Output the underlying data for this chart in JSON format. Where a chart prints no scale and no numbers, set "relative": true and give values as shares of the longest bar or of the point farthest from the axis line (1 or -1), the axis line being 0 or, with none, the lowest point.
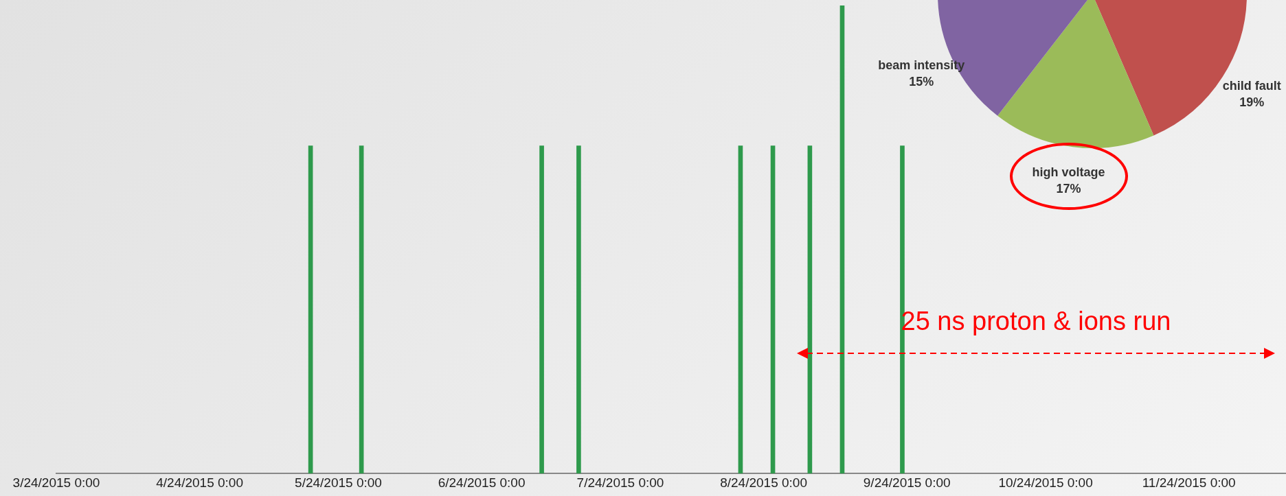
{
  "chart_data": [
    {
      "type": "bar",
      "relative": true,
      "x": [
        "2015-05-18",
        "2015-05-29",
        "2015-07-07",
        "2015-07-15",
        "2015-08-19",
        "2015-08-26",
        "2015-09-03",
        "2015-09-10",
        "2015-09-23"
      ],
      "values": [
        0.7,
        0.7,
        0.7,
        0.7,
        0.7,
        0.7,
        0.7,
        1,
        0.7
      ],
      "color": "#2e9a4c",
      "xlim": [
        "2015-03-24",
        "2015-12-15"
      ],
      "xticks": [
        {
          "value": "2015-03-24",
          "label": "3/24/2015 0:00"
        },
        {
          "value": "2015-04-24",
          "label": "4/24/2015 0:00"
        },
        {
          "value": "2015-05-24",
          "label": "5/24/2015 0:00"
        },
        {
          "value": "2015-06-24",
          "label": "6/24/2015 0:00"
        },
        {
          "value": "2015-07-24",
          "label": "7/24/2015 0:00"
        },
        {
          "value": "2015-08-24",
          "label": "8/24/2015 0:00"
        },
        {
          "value": "2015-09-24",
          "label": "9/24/2015 0:00"
        },
        {
          "value": "2015-10-24",
          "label": "10/24/2015 0:00"
        },
        {
          "value": "2015-11-24",
          "label": "11/24/2015 0:00"
        }
      ],
      "annotations": [
        "25 ns proton & ions run"
      ],
      "grid": false,
      "legend": false
    },
    {
      "type": "pie",
      "categories": [
        "child fault",
        "high voltage",
        "beam intensity"
      ],
      "values": [
        19,
        17,
        15
      ],
      "value_labels": [
        "19%",
        "17%",
        "15%"
      ],
      "colors": [
        "#c0504d",
        "#9bbb59",
        "#8064a2"
      ],
      "legend": false
    }
  ]
}
